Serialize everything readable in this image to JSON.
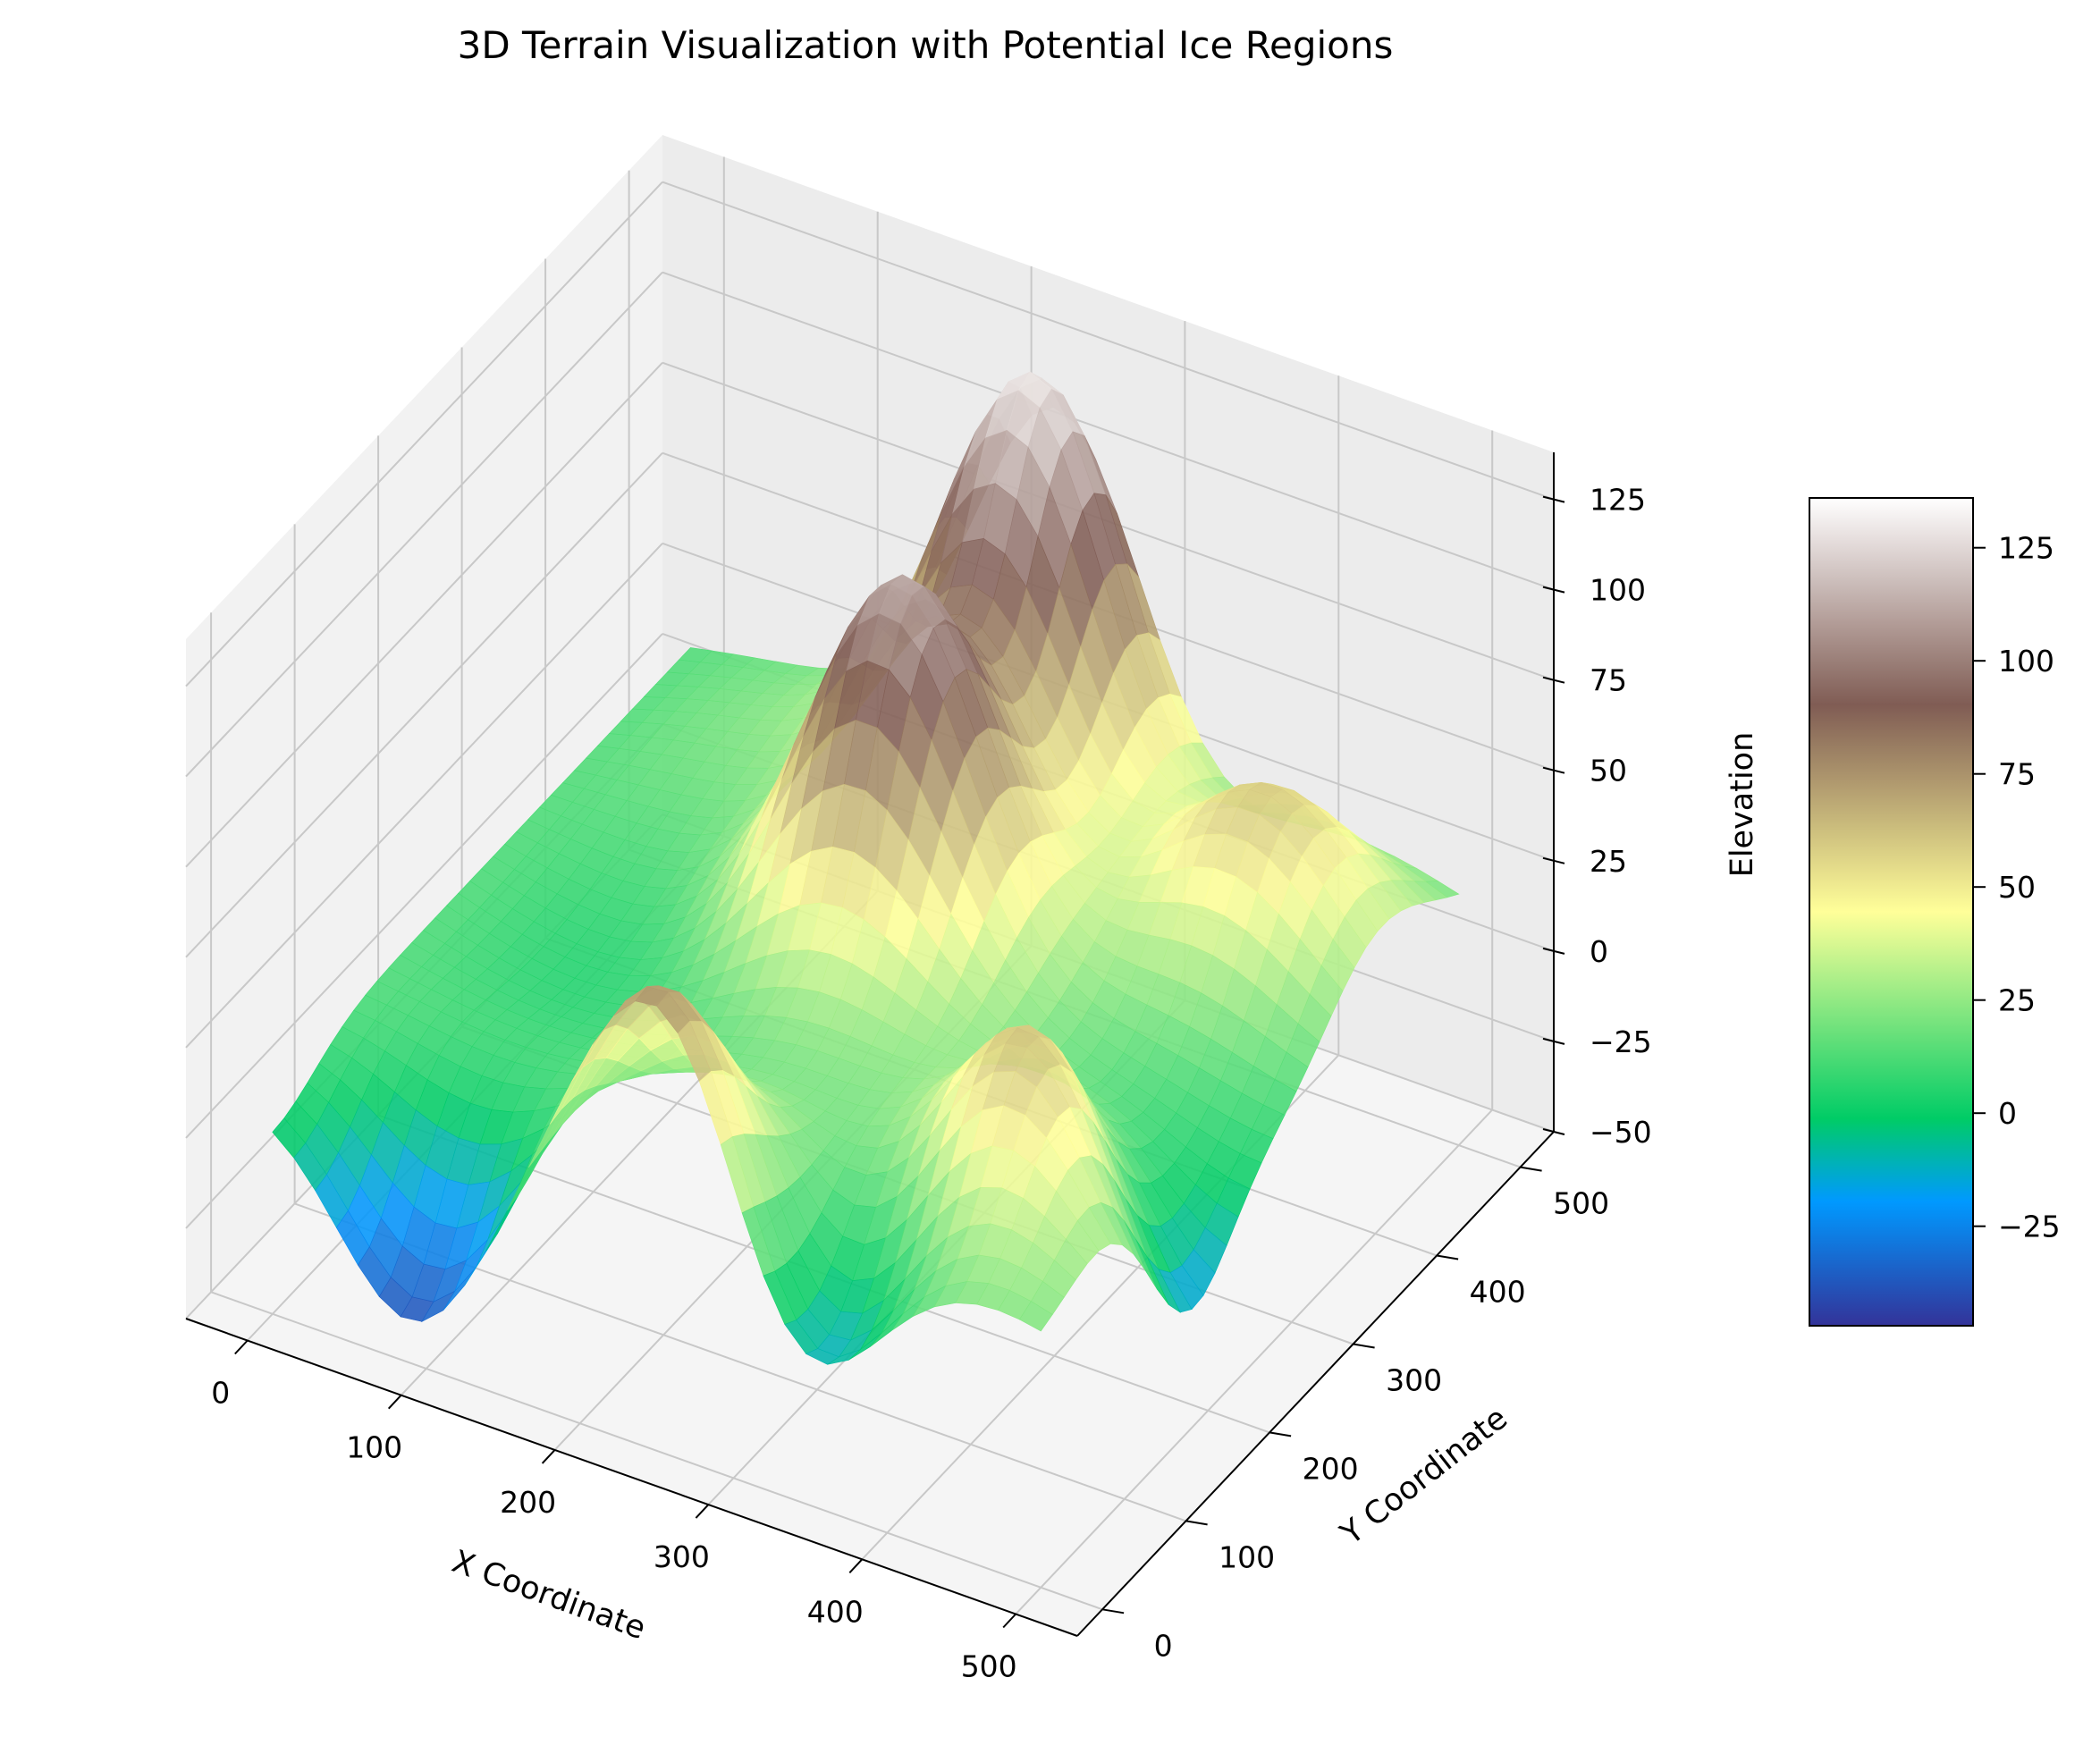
{
  "chart_data": {
    "type": "surface3d",
    "title": "3D Terrain Visualization with Potential Ice Regions",
    "xlabel": "X Coordinate",
    "ylabel": "Y Coordinate",
    "zlabel": "Elevation",
    "xlim": [
      -40,
      540
    ],
    "ylim": [
      -30,
      540
    ],
    "zlim": [
      -50,
      138
    ],
    "x_ticks": [
      0,
      100,
      200,
      300,
      400,
      500
    ],
    "y_ticks": [
      0,
      100,
      200,
      300,
      400,
      500
    ],
    "z_ticks": [
      -50,
      -25,
      0,
      25,
      50,
      75,
      100,
      125
    ],
    "z_tick_labels": [
      "−50",
      "−25",
      "0",
      "25",
      "50",
      "75",
      "100",
      "125"
    ],
    "colormap": "terrain",
    "colorbar": {
      "range": [
        -47,
        136
      ],
      "ticks": [
        -25,
        0,
        25,
        50,
        75,
        100,
        125
      ],
      "tick_labels": [
        "−25",
        "0",
        "25",
        "50",
        "75",
        "100",
        "125"
      ]
    },
    "grid": true,
    "surface_features": [
      {
        "type": "peak",
        "x": 240,
        "y": 470,
        "elevation": 135
      },
      {
        "type": "peak",
        "x": 240,
        "y": 310,
        "elevation": 110
      },
      {
        "type": "peak",
        "x": 260,
        "y": 10,
        "elevation": 95
      },
      {
        "type": "peak",
        "x": 440,
        "y": 130,
        "elevation": 80
      },
      {
        "type": "peak",
        "x": 420,
        "y": 400,
        "elevation": 55
      },
      {
        "type": "basin",
        "x": 90,
        "y": 0,
        "elevation": -47
      },
      {
        "type": "basin",
        "x": 330,
        "y": 20,
        "elevation": -35
      },
      {
        "type": "basin",
        "x": 500,
        "y": 160,
        "elevation": -40
      }
    ]
  }
}
